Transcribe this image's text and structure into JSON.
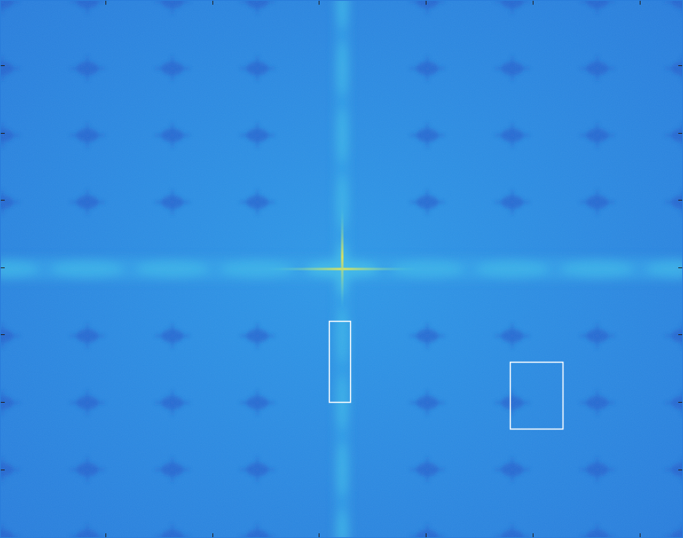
{
  "chart_data": {
    "type": "image",
    "xlim": [
      0,
      868
    ],
    "ylim": [
      684,
      0
    ],
    "xticks": [
      134,
      270,
      405,
      541,
      677,
      813
    ],
    "yticks": [
      83,
      169,
      254,
      340,
      425,
      511,
      597
    ],
    "tick_labels": false,
    "grid": false,
    "color": "#ffffff",
    "boxes": [
      {
        "x0": 418,
        "y0": 408,
        "x1": 445,
        "y1": 511
      },
      {
        "x0": 648,
        "y0": 460,
        "x1": 715,
        "y1": 545
      }
    ]
  }
}
